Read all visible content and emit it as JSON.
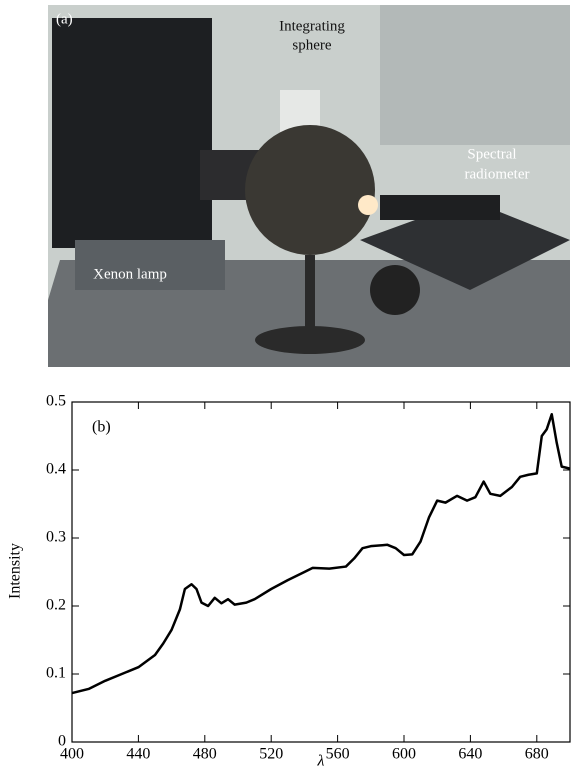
{
  "photo": {
    "panel_label": "(a)",
    "labels": [
      [
        "Integrating",
        "sphere"
      ],
      [
        "Spectral",
        "radiometer"
      ],
      [
        "Xenon lamp"
      ]
    ]
  },
  "chart_data": {
    "type": "line",
    "panel_label": "(b)",
    "x_label": "λ",
    "y_label": "Intensity",
    "x": [
      400,
      410,
      420,
      430,
      440,
      450,
      455,
      460,
      465,
      468,
      472,
      475,
      478,
      482,
      486,
      490,
      494,
      498,
      505,
      510,
      520,
      530,
      540,
      545,
      555,
      565,
      570,
      575,
      580,
      590,
      595,
      600,
      605,
      610,
      615,
      620,
      625,
      632,
      638,
      643,
      648,
      652,
      658,
      665,
      670,
      675,
      680,
      683,
      686,
      689,
      692,
      695,
      700
    ],
    "series": [
      {
        "color": "#000000",
        "values": [
          0.072,
          0.078,
          0.09,
          0.1,
          0.11,
          0.128,
          0.145,
          0.165,
          0.195,
          0.225,
          0.232,
          0.225,
          0.205,
          0.2,
          0.212,
          0.204,
          0.21,
          0.202,
          0.205,
          0.21,
          0.225,
          0.238,
          0.25,
          0.256,
          0.255,
          0.258,
          0.27,
          0.285,
          0.288,
          0.29,
          0.285,
          0.275,
          0.276,
          0.295,
          0.33,
          0.355,
          0.352,
          0.362,
          0.355,
          0.36,
          0.383,
          0.365,
          0.362,
          0.375,
          0.39,
          0.393,
          0.395,
          0.45,
          0.46,
          0.482,
          0.44,
          0.405,
          0.402
        ]
      }
    ],
    "xlim": [
      400,
      700
    ],
    "xticks": [
      400,
      440,
      480,
      520,
      560,
      600,
      640,
      680
    ],
    "ylim": [
      0,
      0.5
    ],
    "yticks": [
      0,
      0.1,
      0.2,
      0.3,
      0.4,
      0.5
    ]
  }
}
